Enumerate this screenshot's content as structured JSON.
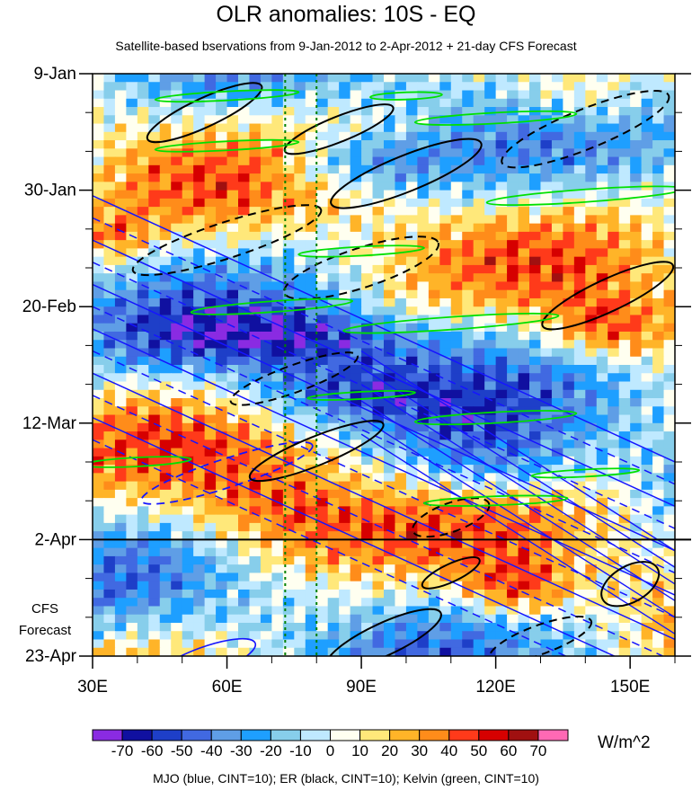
{
  "chart_data": {
    "type": "heatmap",
    "title": "OLR anomalies: 10S - EQ",
    "subtitle": "Satellite-based bservations from 9-Jan-2012 to 2-Apr-2012 + 21-day CFS Forecast",
    "x_ticks": [
      "30E",
      "60E",
      "90E",
      "120E",
      "150E"
    ],
    "x_tick_values": [
      30,
      60,
      90,
      120,
      150
    ],
    "xlim": [
      30,
      160
    ],
    "y_ticks": [
      "9-Jan",
      "30-Jan",
      "20-Feb",
      "12-Mar",
      "2-Apr",
      "23-Apr"
    ],
    "y_tick_days": [
      0,
      21,
      42,
      63,
      84,
      105
    ],
    "ylim": [
      0,
      105
    ],
    "forecast_start": "2-Apr",
    "forecast_label": [
      "CFS",
      "Forecast"
    ],
    "reference_lines_lon": [
      73,
      80
    ],
    "colorbar": {
      "levels": [
        "-70",
        "-60",
        "-50",
        "-40",
        "-30",
        "-20",
        "-10",
        "0",
        "10",
        "20",
        "30",
        "40",
        "50",
        "60",
        "70"
      ],
      "colors": [
        "#8a2be2",
        "#1010a0",
        "#1e3fc8",
        "#4169e1",
        "#5f9ee6",
        "#1e9fff",
        "#87ceeb",
        "#bfe9ff",
        "#fffff0",
        "#ffe87a",
        "#ffb428",
        "#ff8c1a",
        "#ff3a1a",
        "#d60000",
        "#a01010",
        "#ff69b4"
      ],
      "units": "W/m^2"
    },
    "contours_note": "MJO (blue, CINT=10); ER (black, CINT=10); Kelvin (green, CINT=10)",
    "contour_colors": {
      "MJO": "#1515ff",
      "ER": "#000000",
      "Kelvin": "#00e000"
    }
  }
}
